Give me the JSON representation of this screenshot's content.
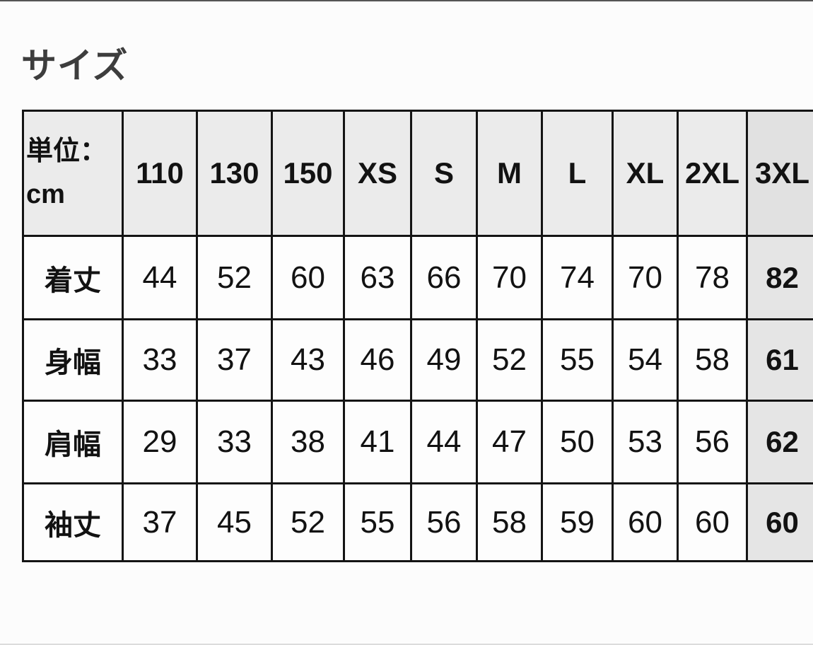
{
  "title": "サイズ",
  "table": {
    "unit_line1": "単位：",
    "unit_line2": "cm",
    "columns": [
      "110",
      "130",
      "150",
      "XS",
      "S",
      "M",
      "L",
      "XL",
      "2XL",
      "3XL"
    ],
    "rows": [
      {
        "label": "着丈",
        "values": [
          "44",
          "52",
          "60",
          "63",
          "66",
          "70",
          "74",
          "70",
          "78",
          "82"
        ]
      },
      {
        "label": "身幅",
        "values": [
          "33",
          "37",
          "43",
          "46",
          "49",
          "52",
          "55",
          "54",
          "58",
          "61"
        ]
      },
      {
        "label": "肩幅",
        "values": [
          "29",
          "33",
          "38",
          "41",
          "44",
          "47",
          "50",
          "53",
          "56",
          "62"
        ]
      },
      {
        "label": "袖丈",
        "values": [
          "37",
          "45",
          "52",
          "55",
          "56",
          "58",
          "59",
          "60",
          "60",
          "60"
        ]
      }
    ],
    "highlighted_column": "3XL"
  },
  "colors": {
    "header_bg": "#ebebeb",
    "highlight_header_bg": "#e1e1e1",
    "highlight_cell_bg": "#e5e5e5",
    "border": "#141414",
    "title_text": "#3d3d3d"
  }
}
